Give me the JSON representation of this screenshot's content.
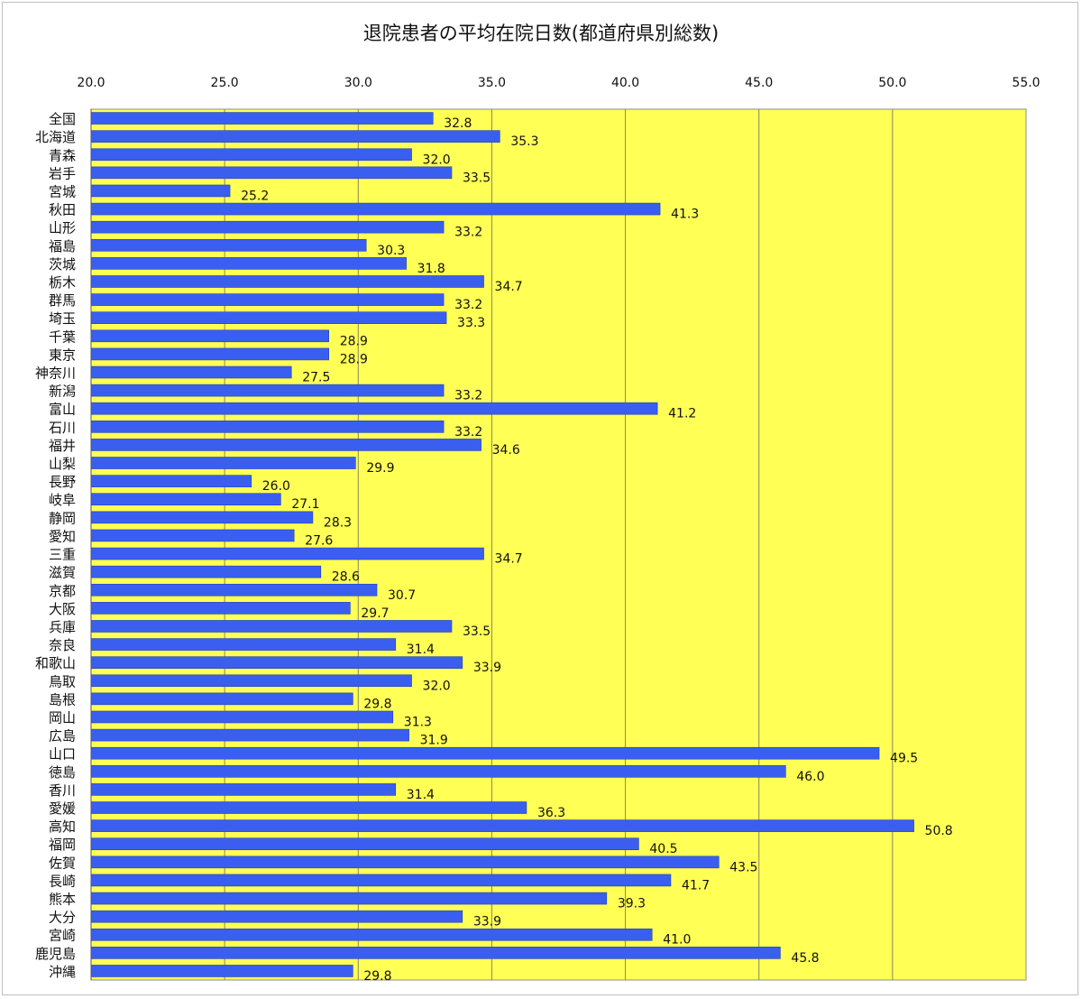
{
  "chart_data": {
    "type": "bar",
    "orientation": "horizontal",
    "title": "退院患者の平均在院日数(都道府県別総数)",
    "xlim": [
      20.0,
      55.0
    ],
    "ticks": [
      "20.0",
      "25.0",
      "30.0",
      "35.0",
      "40.0",
      "45.0",
      "50.0",
      "55.0"
    ],
    "tick_axis_position": "top",
    "grid": true,
    "legend": "none",
    "colors": {
      "bar": "#3a5ff0",
      "plot_background": "#ffff55",
      "gridline": "#8a8a5a"
    },
    "categories": [
      "全国",
      "北海道",
      "青森",
      "岩手",
      "宮城",
      "秋田",
      "山形",
      "福島",
      "茨城",
      "栃木",
      "群馬",
      "埼玉",
      "千葉",
      "東京",
      "神奈川",
      "新潟",
      "富山",
      "石川",
      "福井",
      "山梨",
      "長野",
      "岐阜",
      "静岡",
      "愛知",
      "三重",
      "滋賀",
      "京都",
      "大阪",
      "兵庫",
      "奈良",
      "和歌山",
      "鳥取",
      "島根",
      "岡山",
      "広島",
      "山口",
      "徳島",
      "香川",
      "愛媛",
      "高知",
      "福岡",
      "佐賀",
      "長崎",
      "熊本",
      "大分",
      "宮崎",
      "鹿児島",
      "沖縄"
    ],
    "values": [
      32.8,
      35.3,
      32.0,
      33.5,
      25.2,
      41.3,
      33.2,
      30.3,
      31.8,
      34.7,
      33.2,
      33.3,
      28.9,
      28.9,
      27.5,
      33.2,
      41.2,
      33.2,
      34.6,
      29.9,
      26.0,
      27.1,
      28.3,
      27.6,
      34.7,
      28.6,
      30.7,
      29.7,
      33.5,
      31.4,
      33.9,
      32.0,
      29.8,
      31.3,
      31.9,
      49.5,
      46.0,
      31.4,
      36.3,
      50.8,
      40.5,
      43.5,
      41.7,
      39.3,
      33.9,
      41.0,
      45.8,
      29.8
    ],
    "value_labels": [
      "32.8",
      "35.3",
      "32.0",
      "33.5",
      "25.2",
      "41.3",
      "33.2",
      "30.3",
      "31.8",
      "34.7",
      "33.2",
      "33.3",
      "28.9",
      "28.9",
      "27.5",
      "33.2",
      "41.2",
      "33.2",
      "34.6",
      "29.9",
      "26.0",
      "27.1",
      "28.3",
      "27.6",
      "34.7",
      "28.6",
      "30.7",
      "29.7",
      "33.5",
      "31.4",
      "33.9",
      "32.0",
      "29.8",
      "31.3",
      "31.9",
      "49.5",
      "46.0",
      "31.4",
      "36.3",
      "50.8",
      "40.5",
      "43.5",
      "41.7",
      "39.3",
      "33.9",
      "41.0",
      "45.8",
      "29.8"
    ]
  }
}
